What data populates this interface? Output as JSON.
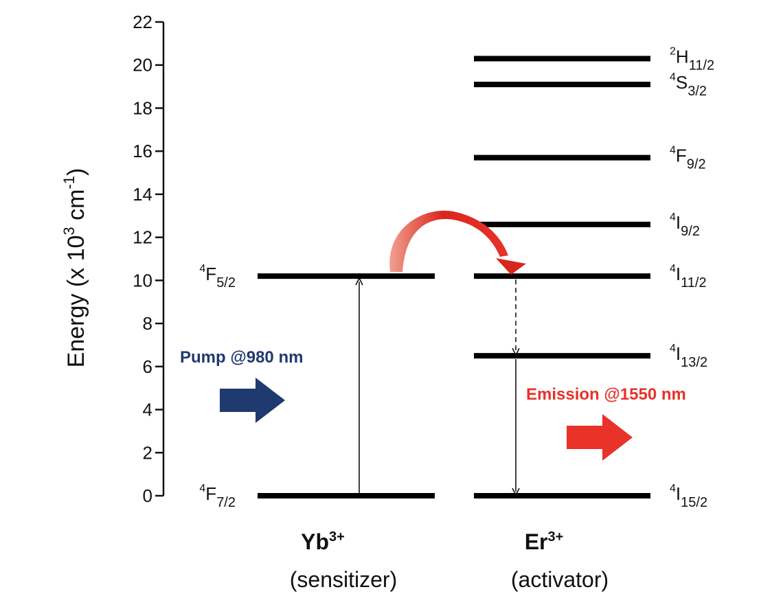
{
  "y_axis": {
    "label": "Energy (x 10",
    "label_sup": "3",
    "label_tail": " cm",
    "label_sup2": "-1",
    "label_close": ")",
    "ticks": [
      0,
      2,
      4,
      6,
      8,
      10,
      12,
      14,
      16,
      18,
      20,
      22
    ],
    "range": [
      0,
      22
    ]
  },
  "yb": {
    "ion": "Yb",
    "charge": "3+",
    "role": "(sensitizer)",
    "levels": [
      {
        "sup": "4",
        "main": "F",
        "sub": "5/2",
        "energy": 10.2
      },
      {
        "sup": "4",
        "main": "F",
        "sub": "7/2",
        "energy": 0
      }
    ]
  },
  "er": {
    "ion": "Er",
    "charge": "3+",
    "role": "(activator)",
    "levels": [
      {
        "sup": "2",
        "main": "H",
        "sub": "11/2",
        "energy": 20.3
      },
      {
        "sup": "4",
        "main": "S",
        "sub": "3/2",
        "energy": 19.1
      },
      {
        "sup": "4",
        "main": "F",
        "sub": "9/2",
        "energy": 15.7
      },
      {
        "sup": "4",
        "main": "I",
        "sub": "9/2",
        "energy": 12.6
      },
      {
        "sup": "4",
        "main": "I",
        "sub": "11/2",
        "energy": 10.2
      },
      {
        "sup": "4",
        "main": "I",
        "sub": "13/2",
        "energy": 6.5
      },
      {
        "sup": "4",
        "main": "I",
        "sub": "15/2",
        "energy": 0
      }
    ]
  },
  "pump": {
    "label": "Pump @980 nm",
    "color": "#1f3a6e"
  },
  "emission": {
    "label": "Emission @1550 nm",
    "color": "#e8322a"
  },
  "transfer_color": "#d9261c"
}
